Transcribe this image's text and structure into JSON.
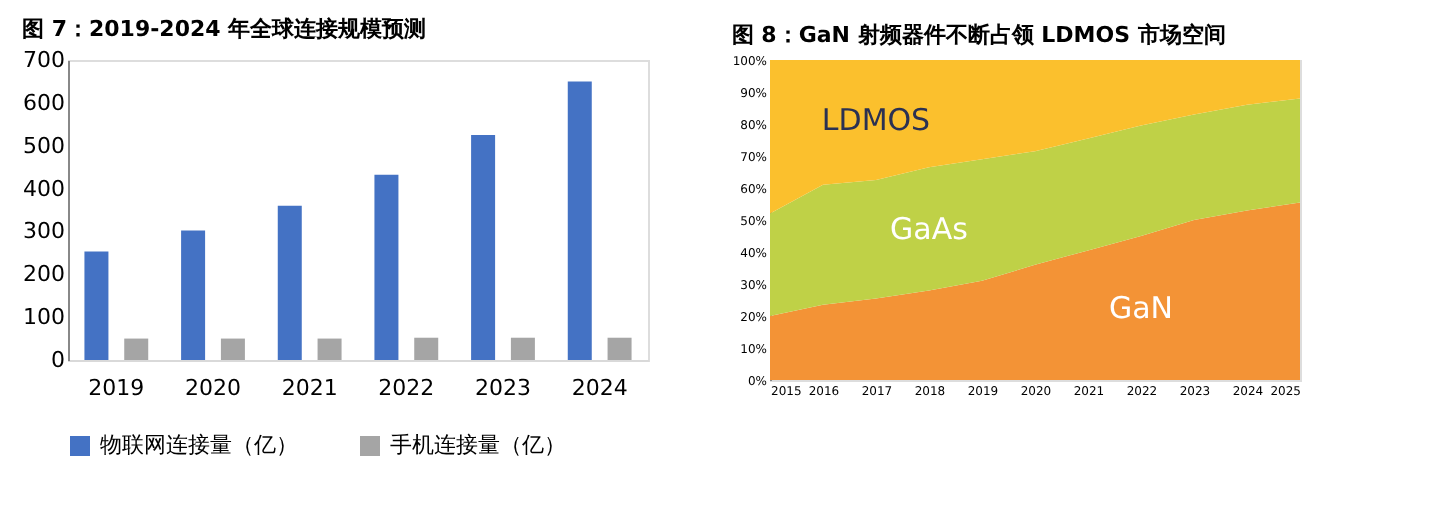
{
  "chart_data": [
    {
      "type": "bar",
      "title": "图 7：2019-2024 年全球连接规模预测",
      "categories": [
        "2019",
        "2020",
        "2021",
        "2022",
        "2023",
        "2024"
      ],
      "series": [
        {
          "name": "物联网连接量（亿）",
          "color": "#4472c4",
          "values": [
            253,
            302,
            360,
            432,
            525,
            650
          ]
        },
        {
          "name": "手机连接量（亿）",
          "color": "#a5a5a5",
          "values": [
            50,
            50,
            50,
            52,
            52,
            52
          ]
        }
      ],
      "ylim": [
        0,
        700
      ],
      "yticks": [
        0,
        100,
        200,
        300,
        400,
        500,
        600,
        700
      ],
      "grid": false,
      "legend": "bottom"
    },
    {
      "type": "area",
      "title": "图 8：GaN 射频器件不断占领 LDMOS 市场空间",
      "stacked": true,
      "x": [
        2015,
        2016,
        2017,
        2018,
        2019,
        2020,
        2021,
        2022,
        2023,
        2024,
        2025
      ],
      "series": [
        {
          "name": "GaN",
          "color": "#f39336",
          "values": [
            20,
            23.5,
            25.5,
            28,
            31,
            36,
            40.5,
            45,
            50,
            53,
            55.5
          ]
        },
        {
          "name": "GaAs",
          "color": "#bfd147",
          "values": [
            32,
            37.5,
            37,
            38.5,
            38,
            35.5,
            35,
            34.5,
            33,
            33,
            32.5
          ]
        },
        {
          "name": "LDMOS",
          "color": "#fbc02d",
          "values": [
            48,
            39,
            37.5,
            33.5,
            31,
            28.5,
            24.5,
            20.5,
            17,
            14,
            12
          ]
        }
      ],
      "xlim": [
        2015,
        2025
      ],
      "xticks": [
        2015,
        2016,
        2017,
        2018,
        2019,
        2020,
        2021,
        2022,
        2023,
        2024,
        2025
      ],
      "ylim": [
        0,
        100
      ],
      "yticks": [
        {
          "value": 0,
          "label": "0%"
        },
        {
          "value": 10,
          "label": "10%"
        },
        {
          "value": 20,
          "label": "20%"
        },
        {
          "value": 30,
          "label": "30%"
        },
        {
          "value": 40,
          "label": "40%"
        },
        {
          "value": 50,
          "label": "50%"
        },
        {
          "value": 60,
          "label": "60%"
        },
        {
          "value": 70,
          "label": "70%"
        },
        {
          "value": 80,
          "label": "80%"
        },
        {
          "value": 90,
          "label": "90%"
        },
        {
          "value": 100,
          "label": "100%"
        }
      ],
      "grid": false,
      "legend": false
    }
  ]
}
